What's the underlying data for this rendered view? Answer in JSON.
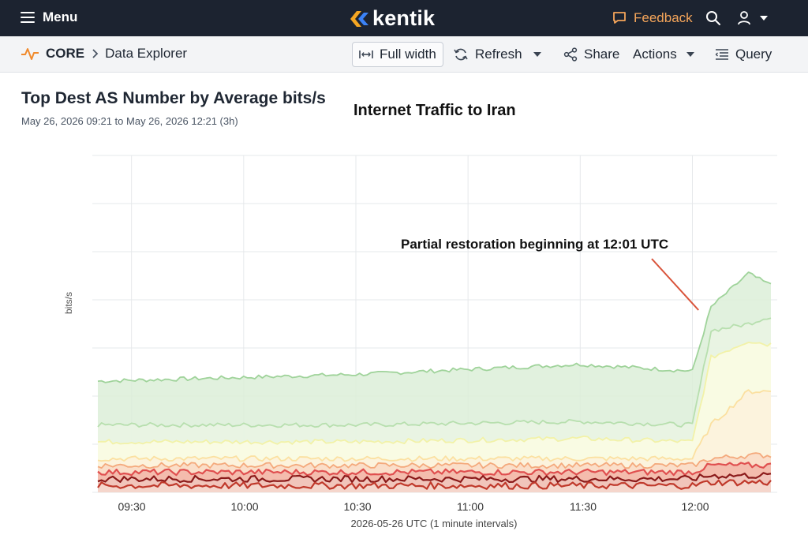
{
  "topbar": {
    "menu_label": "Menu",
    "logo_text": "kentik",
    "feedback_label": "Feedback",
    "icons": [
      "menu-icon",
      "kentik-logo-icon",
      "feedback-icon",
      "search-icon",
      "user-icon",
      "chevron-down-icon"
    ]
  },
  "breadcrumb": {
    "section": "CORE",
    "page": "Data Explorer"
  },
  "toolbar": {
    "full_width_label": "Full width",
    "refresh_label": "Refresh",
    "share_label": "Share",
    "actions_label": "Actions",
    "query_label": "Query"
  },
  "panel": {
    "title": "Top Dest AS Number by Average bits/s",
    "range_start": "May 26, 2026 09:21",
    "range_to": "to",
    "range_end": "May 26, 2026 12:21 (3h)"
  },
  "colors": {
    "topbar_bg": "#1c2330",
    "feedback_accent": "#f5a55a",
    "logo_chevron_1": "#f5a623",
    "logo_chevron_2": "#3b82f6"
  },
  "chart_data": {
    "type": "area",
    "title": "Internet Traffic to Iran",
    "xlabel": "2026-05-26 UTC (1 minute intervals)",
    "ylabel": "bits/s",
    "x_ticks": [
      "09:30",
      "10:00",
      "10:30",
      "11:00",
      "11:30",
      "12:00"
    ],
    "x_range": [
      "09:21",
      "12:21"
    ],
    "y_tick_labels_shown": false,
    "grid": true,
    "stacked": true,
    "annotation": {
      "text": "Partial restoration beginning at 12:01 UTC",
      "x": "12:01"
    },
    "series": [
      {
        "color": "#9fd39a",
        "fill": "#dcefd8",
        "values_relative": {
          "09:21": 0.33,
          "10:30": 0.35,
          "11:30": 0.38,
          "12:00": 0.36,
          "12:05": 0.55,
          "12:15": 0.65,
          "12:20": 0.62
        }
      },
      {
        "color": "#b7dfae",
        "fill": "#eaf5e4",
        "values_relative": {
          "09:21": 0.2,
          "10:30": 0.2,
          "11:30": 0.21,
          "12:00": 0.2,
          "12:05": 0.48,
          "12:15": 0.5,
          "12:20": 0.52
        }
      },
      {
        "color": "#f2f2a8",
        "fill": "#fbfbe3",
        "values_relative": {
          "09:21": 0.15,
          "10:30": 0.15,
          "11:30": 0.16,
          "12:00": 0.15,
          "12:05": 0.4,
          "12:15": 0.45,
          "12:20": 0.44
        }
      },
      {
        "color": "#fbe0a0",
        "fill": "#fdf1dc",
        "values_relative": {
          "09:21": 0.1,
          "10:30": 0.1,
          "11:30": 0.1,
          "12:00": 0.1,
          "12:05": 0.2,
          "12:15": 0.3,
          "12:20": 0.3
        }
      },
      {
        "color": "#f4a97c",
        "fill": "#f9d9c5",
        "values_relative": {
          "09:21": 0.08,
          "10:30": 0.08,
          "11:30": 0.08,
          "12:00": 0.08,
          "12:05": 0.1,
          "12:15": 0.11,
          "12:20": 0.11
        }
      },
      {
        "color": "#e04f4f",
        "fill": "#f2b6a8",
        "values_relative": {
          "09:21": 0.06,
          "10:30": 0.06,
          "11:30": 0.06,
          "12:00": 0.06,
          "12:05": 0.08,
          "12:15": 0.08,
          "12:20": 0.08
        }
      },
      {
        "color": "#8b1a1a",
        "fill": "#f0c7bd",
        "values_relative": {
          "09:21": 0.04,
          "10:30": 0.04,
          "11:30": 0.04,
          "12:00": 0.04,
          "12:05": 0.05,
          "12:15": 0.05,
          "12:20": 0.05
        }
      },
      {
        "color": "#c0392b",
        "fill": "#f6d8cf",
        "values_relative": {
          "09:21": 0.02,
          "10:30": 0.02,
          "11:30": 0.02,
          "12:00": 0.02,
          "12:05": 0.03,
          "12:15": 0.03,
          "12:20": 0.03
        }
      }
    ]
  }
}
